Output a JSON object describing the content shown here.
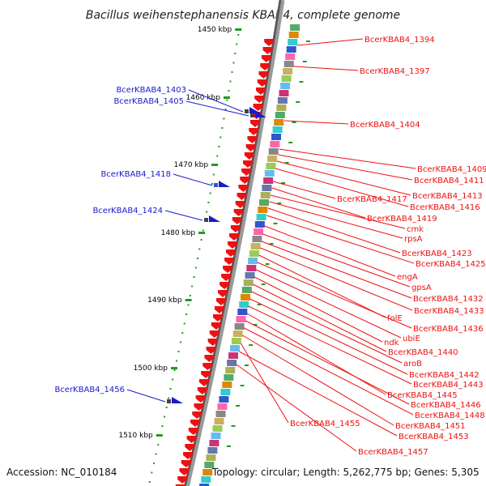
{
  "title": "Bacillus weihenstephanensis KBAB4, complete genome",
  "accession": "Accession: NC_010184",
  "topology": "Topology: circular; Length: 5,262,775 bp; Genes: 5,305",
  "scale_labels": [
    "1450 kbp",
    "1460 kbp",
    "1470 kbp",
    "1480 kbp",
    "1490 kbp",
    "1500 kbp",
    "1510 kbp"
  ],
  "left_genes": [
    "BcerKBAB4_1403",
    "BcerKBAB4_1405",
    "BcerKBAB4_1418",
    "BcerKBAB4_1424",
    "BcerKBAB4_1456"
  ],
  "right_genes": [
    "BcerKBAB4_1394",
    "BcerKBAB4_1397",
    "BcerKBAB4_1404",
    "BcerKBAB4_1409",
    "BcerKBAB4_1411",
    "BcerKBAB4_1413",
    "BcerKBAB4_1417",
    "BcerKBAB4_1416",
    "BcerKBAB4_1419",
    "cmk",
    "rpsA",
    "BcerKBAB4_1423",
    "BcerKBAB4_1425",
    "engA",
    "gpsA",
    "BcerKBAB4_1432",
    "BcerKBAB4_1433",
    "folE",
    "BcerKBAB4_1436",
    "ubiE",
    "ndk",
    "BcerKBAB4_1440",
    "aroB",
    "BcerKBAB4_1442",
    "BcerKBAB4_1443",
    "BcerKBAB4_1445",
    "BcerKBAB4_1446",
    "BcerKBAB4_1448",
    "BcerKBAB4_1455",
    "BcerKBAB4_1451",
    "BcerKBAB4_1453",
    "BcerKBAB4_1457"
  ],
  "colors": {
    "forward_strand_gene": "#ee1111",
    "reverse_strand_gene": "#1a1acc",
    "genome_backbone": "#777777",
    "tick_marks": "#229922"
  }
}
